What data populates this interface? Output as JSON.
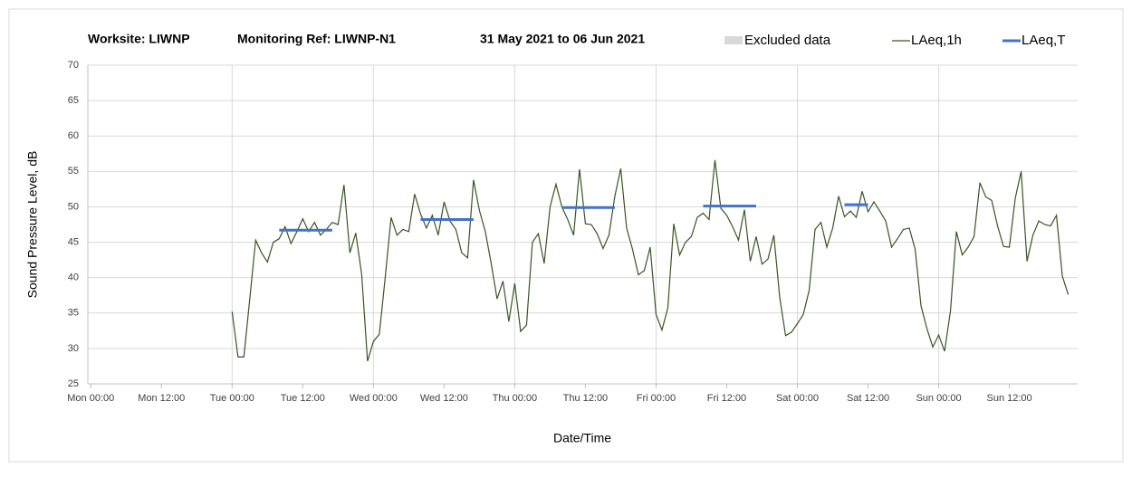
{
  "chart_data": {
    "type": "line",
    "title": [
      "Worksite: LIWNP",
      "Monitoring Ref: LIWNP-N1",
      "31 May 2021 to 06 Jun 2021"
    ],
    "x_label": "Date/Time",
    "y_label": "Sound Pressure Level, dB",
    "excluded_label": "Excluded data",
    "excluded_color": "#d9d9d9",
    "xlim": [
      -0.5,
      167.6
    ],
    "ylim": [
      25,
      70
    ],
    "yticks": [
      25,
      30,
      35,
      40,
      45,
      50,
      55,
      60,
      65,
      70
    ],
    "xticks": [
      {
        "value": 0,
        "label": "Mon 00:00"
      },
      {
        "value": 12,
        "label": "Mon 12:00"
      },
      {
        "value": 24,
        "label": "Tue 00:00"
      },
      {
        "value": 36,
        "label": "Tue 12:00"
      },
      {
        "value": 48,
        "label": "Wed 00:00"
      },
      {
        "value": 60,
        "label": "Wed 12:00"
      },
      {
        "value": 72,
        "label": "Thu 00:00"
      },
      {
        "value": 84,
        "label": "Thu 12:00"
      },
      {
        "value": 96,
        "label": "Fri 00:00"
      },
      {
        "value": 108,
        "label": "Fri 12:00"
      },
      {
        "value": 120,
        "label": "Sat 00:00"
      },
      {
        "value": 132,
        "label": "Sat 12:00"
      },
      {
        "value": 144,
        "label": "Sun 00:00"
      },
      {
        "value": 156,
        "label": "Sun 12:00"
      }
    ],
    "x": [
      24,
      25,
      26,
      27,
      28,
      29,
      30,
      31,
      32,
      33,
      34,
      35,
      36,
      37,
      38,
      39,
      40,
      41,
      42,
      43,
      44,
      45,
      46,
      47,
      48,
      49,
      50,
      51,
      52,
      53,
      54,
      55,
      56,
      57,
      58,
      59,
      60,
      61,
      62,
      63,
      64,
      65,
      66,
      67,
      68,
      69,
      70,
      71,
      72,
      73,
      74,
      75,
      76,
      77,
      78,
      79,
      80,
      81,
      82,
      83,
      84,
      85,
      86,
      87,
      88,
      89,
      90,
      91,
      92,
      93,
      94,
      95,
      96,
      97,
      98,
      99,
      100,
      101,
      102,
      103,
      104,
      105,
      106,
      107,
      108,
      109,
      110,
      111,
      112,
      113,
      114,
      115,
      116,
      117,
      118,
      119,
      120,
      121,
      122,
      123,
      124,
      125,
      126,
      127,
      128,
      129,
      130,
      131,
      132,
      133,
      134,
      135,
      136,
      137,
      138,
      139,
      140,
      141,
      142,
      143,
      144,
      145,
      146,
      147,
      148,
      149,
      150,
      151,
      152,
      153,
      154,
      155,
      156,
      157,
      158,
      159,
      160,
      161,
      162,
      163,
      164,
      165,
      166
    ],
    "series": [
      {
        "name": "LAeq,1h",
        "color": "#375623",
        "values": [
          35.2,
          28.8,
          28.8,
          37,
          45.3,
          43.5,
          42.2,
          45,
          45.5,
          47.2,
          44.8,
          46.5,
          48.3,
          46.5,
          47.8,
          46,
          46.8,
          47.8,
          47.5,
          53.1,
          43.5,
          46.3,
          40.5,
          28.2,
          31,
          32,
          40,
          48.5,
          46,
          46.8,
          46.5,
          51.8,
          49,
          47,
          48.8,
          46,
          50.7,
          48,
          46.8,
          43.5,
          42.8,
          53.8,
          49.5,
          46.5,
          42,
          37,
          39.5,
          33.8,
          39.2,
          32.4,
          33.3,
          45,
          46.2,
          42,
          50,
          53.2,
          50,
          48.2,
          46,
          55.3,
          47.6,
          47.5,
          46.2,
          44.1,
          46,
          51.5,
          55.4,
          47,
          44,
          40.4,
          41,
          44.3,
          34.8,
          32.6,
          35.7,
          47.6,
          43.2,
          45,
          45.8,
          48.5,
          49.1,
          48.2,
          56.6,
          49.8,
          48.8,
          47.2,
          45.3,
          49.6,
          42.3,
          45.8,
          41.9,
          42.6,
          46,
          37.2,
          31.8,
          32.3,
          33.5,
          34.8,
          38.2,
          46.8,
          47.8,
          44.3,
          47,
          51.5,
          48.6,
          49.4,
          48.5,
          52.2,
          49.3,
          50.7,
          49.4,
          48,
          44.3,
          45.5,
          46.8,
          47,
          44,
          36,
          32.8,
          30.2,
          31.9,
          29.6,
          35.3,
          46.5,
          43.2,
          44.3,
          45.8,
          53.4,
          51.4,
          50.9,
          47.3,
          44.4,
          44.3,
          51.2,
          55,
          42.3,
          46,
          48,
          47.5,
          47.3,
          48.8,
          40.2,
          37.6
        ]
      },
      {
        "name": "LAeq,T",
        "color": "#4472c4",
        "periods": [
          {
            "start": 32,
            "end": 41,
            "value": 46.7
          },
          {
            "start": 56,
            "end": 65,
            "value": 48.2
          },
          {
            "start": 80,
            "end": 89,
            "value": 49.9
          },
          {
            "start": 104,
            "end": 113,
            "value": 50.1
          },
          {
            "start": 128,
            "end": 132,
            "value": 50.3
          }
        ]
      }
    ]
  }
}
